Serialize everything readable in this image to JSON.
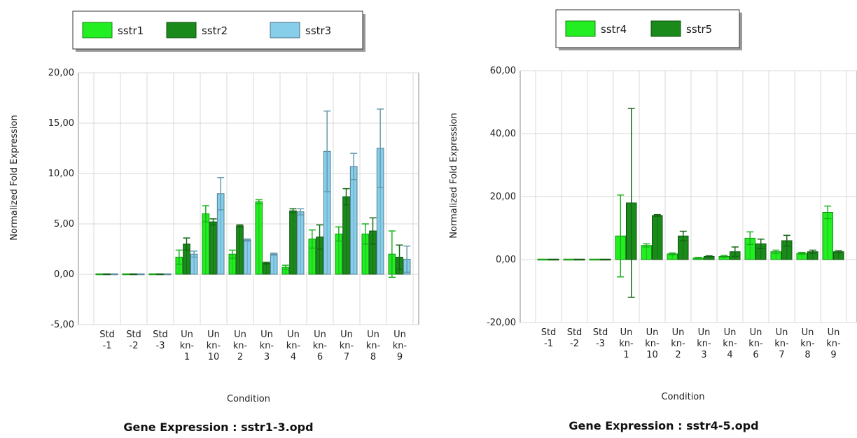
{
  "chart_data": [
    {
      "type": "bar",
      "title": "Gene Expression : sstr1-3.opd",
      "xlabel": "Condition",
      "ylabel": "Normalized Fold Expression",
      "ylim": [
        -5,
        20
      ],
      "yticks": [
        "20,00",
        "15,00",
        "10,00",
        "5,00",
        "0,00",
        "-5,00"
      ],
      "yticks_values": [
        20,
        15,
        10,
        5,
        0,
        -5
      ],
      "grid": true,
      "legend_position": "top",
      "categories": [
        [
          "Std",
          "-1"
        ],
        [
          "Std",
          "-2"
        ],
        [
          "Std",
          "-3"
        ],
        [
          "Un",
          "kn-",
          "1"
        ],
        [
          "Un",
          "kn-",
          "10"
        ],
        [
          "Un",
          "kn-",
          "2"
        ],
        [
          "Un",
          "kn-",
          "3"
        ],
        [
          "Un",
          "kn-",
          "4"
        ],
        [
          "Un",
          "kn-",
          "6"
        ],
        [
          "Un",
          "kn-",
          "7"
        ],
        [
          "Un",
          "kn-",
          "8"
        ],
        [
          "Un",
          "kn-",
          "9"
        ]
      ],
      "series": [
        {
          "name": "sstr1",
          "color": "#22ee22",
          "values": [
            0,
            0,
            0,
            1.7,
            6.0,
            2.0,
            7.2,
            0.7,
            3.5,
            4.0,
            4.0,
            2.0
          ],
          "errors": [
            0,
            0,
            0,
            0.7,
            0.8,
            0.4,
            0.2,
            0.2,
            0.9,
            0.7,
            1.0,
            2.3
          ]
        },
        {
          "name": "sstr2",
          "color": "#1a8a1a",
          "values": [
            0,
            0,
            0,
            3.0,
            5.2,
            4.8,
            1.1,
            6.3,
            3.7,
            7.7,
            4.3,
            1.7
          ],
          "errors": [
            0,
            0,
            0,
            0.6,
            0.3,
            0.1,
            0.1,
            0.2,
            1.2,
            0.8,
            1.3,
            1.2
          ]
        },
        {
          "name": "sstr3",
          "color": "#87ceeb",
          "values": [
            0,
            0,
            0,
            2.0,
            8.0,
            3.4,
            2.0,
            6.2,
            12.2,
            10.7,
            12.5,
            1.5
          ],
          "errors": [
            0,
            0,
            0,
            0.3,
            1.6,
            0.1,
            0.1,
            0.3,
            4.0,
            1.3,
            3.9,
            1.3
          ]
        }
      ]
    },
    {
      "type": "bar",
      "title": "Gene Expression : sstr4-5.opd",
      "xlabel": "Condition",
      "ylabel": "Normalized Fold Expression",
      "ylim": [
        -20,
        60
      ],
      "yticks": [
        "60,00",
        "40,00",
        "20,00",
        "0,00",
        "-20,00"
      ],
      "yticks_values": [
        60,
        40,
        20,
        0,
        -20
      ],
      "grid": true,
      "legend_position": "top",
      "categories": [
        [
          "Std",
          "-1"
        ],
        [
          "Std",
          "-2"
        ],
        [
          "Std",
          "-3"
        ],
        [
          "Un",
          "kn-",
          "1"
        ],
        [
          "Un",
          "kn-",
          "10"
        ],
        [
          "Un",
          "kn-",
          "2"
        ],
        [
          "Un",
          "kn-",
          "3"
        ],
        [
          "Un",
          "kn-",
          "4"
        ],
        [
          "Un",
          "kn-",
          "6"
        ],
        [
          "Un",
          "kn-",
          "7"
        ],
        [
          "Un",
          "kn-",
          "8"
        ],
        [
          "Un",
          "kn-",
          "9"
        ]
      ],
      "series": [
        {
          "name": "sstr4",
          "color": "#22ee22",
          "values": [
            0,
            0,
            0,
            7.5,
            4.5,
            1.8,
            0.5,
            1.0,
            6.8,
            2.5,
            2.0,
            15.0
          ],
          "errors": [
            0,
            0,
            0,
            13.0,
            0.5,
            0.3,
            0.2,
            0.3,
            2.0,
            0.5,
            0.3,
            2.0
          ]
        },
        {
          "name": "sstr5",
          "color": "#1a8a1a",
          "values": [
            0,
            0,
            0,
            18.0,
            14.0,
            7.5,
            1.0,
            2.5,
            5.0,
            6.0,
            2.5,
            2.5
          ],
          "errors": [
            0,
            0,
            0,
            30.0,
            0.3,
            1.5,
            0.2,
            1.5,
            1.5,
            1.7,
            0.5,
            0.3
          ]
        }
      ]
    }
  ]
}
